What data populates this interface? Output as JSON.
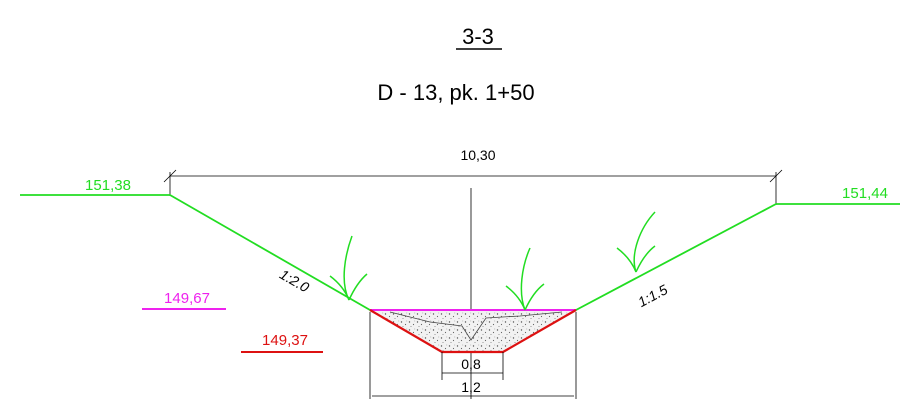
{
  "section": {
    "number": "3-3",
    "subtitle": "D - 13, pk. 1+50"
  },
  "dimensions": {
    "top_width": "10,30",
    "bottom_width": "0,8",
    "trench_width": "1,2"
  },
  "slopes": {
    "left": "1:2.0",
    "right": "1:1.5"
  },
  "elevations": {
    "left_ground": "151,38",
    "right_ground": "151,44",
    "water_level": "149,67",
    "bottom": "149,37"
  },
  "colors": {
    "ground_line": "#22dd22",
    "water_line": "#ee22ee",
    "bottom_line": "#dd1111",
    "dimension_line": "#000000",
    "fill": "#cccccc"
  }
}
